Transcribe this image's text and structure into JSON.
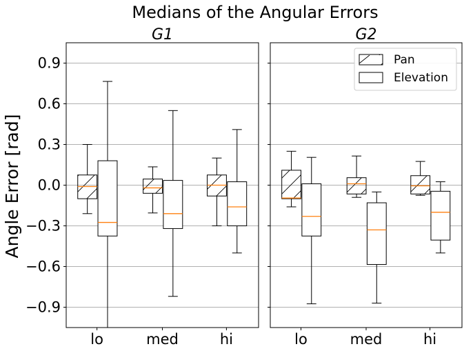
{
  "chart_data": {
    "type": "box",
    "title": "Medians of the Angular Errors",
    "ylabel": "Angle Error [rad]",
    "ylim": [
      -1.05,
      1.05
    ],
    "yticks": [
      -0.9,
      -0.6,
      -0.3,
      0.0,
      0.3,
      0.6,
      0.9
    ],
    "ytick_labels": [
      "−0.9",
      "−0.6",
      "−0.3",
      "0.0",
      "0.3",
      "0.6",
      "0.9"
    ],
    "grid": "horizontal",
    "categories": [
      "lo",
      "med",
      "hi"
    ],
    "legend": {
      "placement": "top-right",
      "entries": [
        {
          "label": "Pan",
          "hatch": true
        },
        {
          "label": "Elevation",
          "hatch": false
        }
      ]
    },
    "colors": {
      "median": "#ff7f0e",
      "box": "#000000",
      "grid": "#b0b0b0"
    },
    "panels": [
      {
        "title": "G1",
        "series": [
          {
            "name": "Pan",
            "boxes": [
              {
                "category": "lo",
                "whislo": -0.21,
                "q1": -0.1,
                "med": -0.01,
                "q3": 0.075,
                "whishi": 0.3
              },
              {
                "category": "med",
                "whislo": -0.205,
                "q1": -0.06,
                "med": -0.02,
                "q3": 0.045,
                "whishi": 0.135
              },
              {
                "category": "hi",
                "whislo": -0.3,
                "q1": -0.08,
                "med": 0.0,
                "q3": 0.075,
                "whishi": 0.2
              }
            ]
          },
          {
            "name": "Elevation",
            "boxes": [
              {
                "category": "lo",
                "whislo": -1.06,
                "q1": -0.375,
                "med": -0.275,
                "q3": 0.18,
                "whishi": 0.765
              },
              {
                "category": "med",
                "whislo": -0.82,
                "q1": -0.32,
                "med": -0.21,
                "q3": 0.035,
                "whishi": 0.55
              },
              {
                "category": "hi",
                "whislo": -0.5,
                "q1": -0.3,
                "med": -0.16,
                "q3": 0.025,
                "whishi": 0.41
              }
            ]
          }
        ]
      },
      {
        "title": "G2",
        "series": [
          {
            "name": "Pan",
            "boxes": [
              {
                "category": "lo",
                "whislo": -0.16,
                "q1": -0.1,
                "med": -0.095,
                "q3": 0.11,
                "whishi": 0.25
              },
              {
                "category": "med",
                "whislo": -0.09,
                "q1": -0.065,
                "med": 0.01,
                "q3": 0.055,
                "whishi": 0.215
              },
              {
                "category": "hi",
                "whislo": -0.075,
                "q1": -0.065,
                "med": -0.005,
                "q3": 0.07,
                "whishi": 0.175
              }
            ]
          },
          {
            "name": "Elevation",
            "boxes": [
              {
                "category": "lo",
                "whislo": -0.875,
                "q1": -0.375,
                "med": -0.23,
                "q3": 0.01,
                "whishi": 0.205
              },
              {
                "category": "med",
                "whislo": -0.87,
                "q1": -0.585,
                "med": -0.33,
                "q3": -0.13,
                "whishi": -0.05
              },
              {
                "category": "hi",
                "whislo": -0.5,
                "q1": -0.405,
                "med": -0.2,
                "q3": -0.045,
                "whishi": 0.025
              }
            ]
          }
        ]
      }
    ]
  }
}
